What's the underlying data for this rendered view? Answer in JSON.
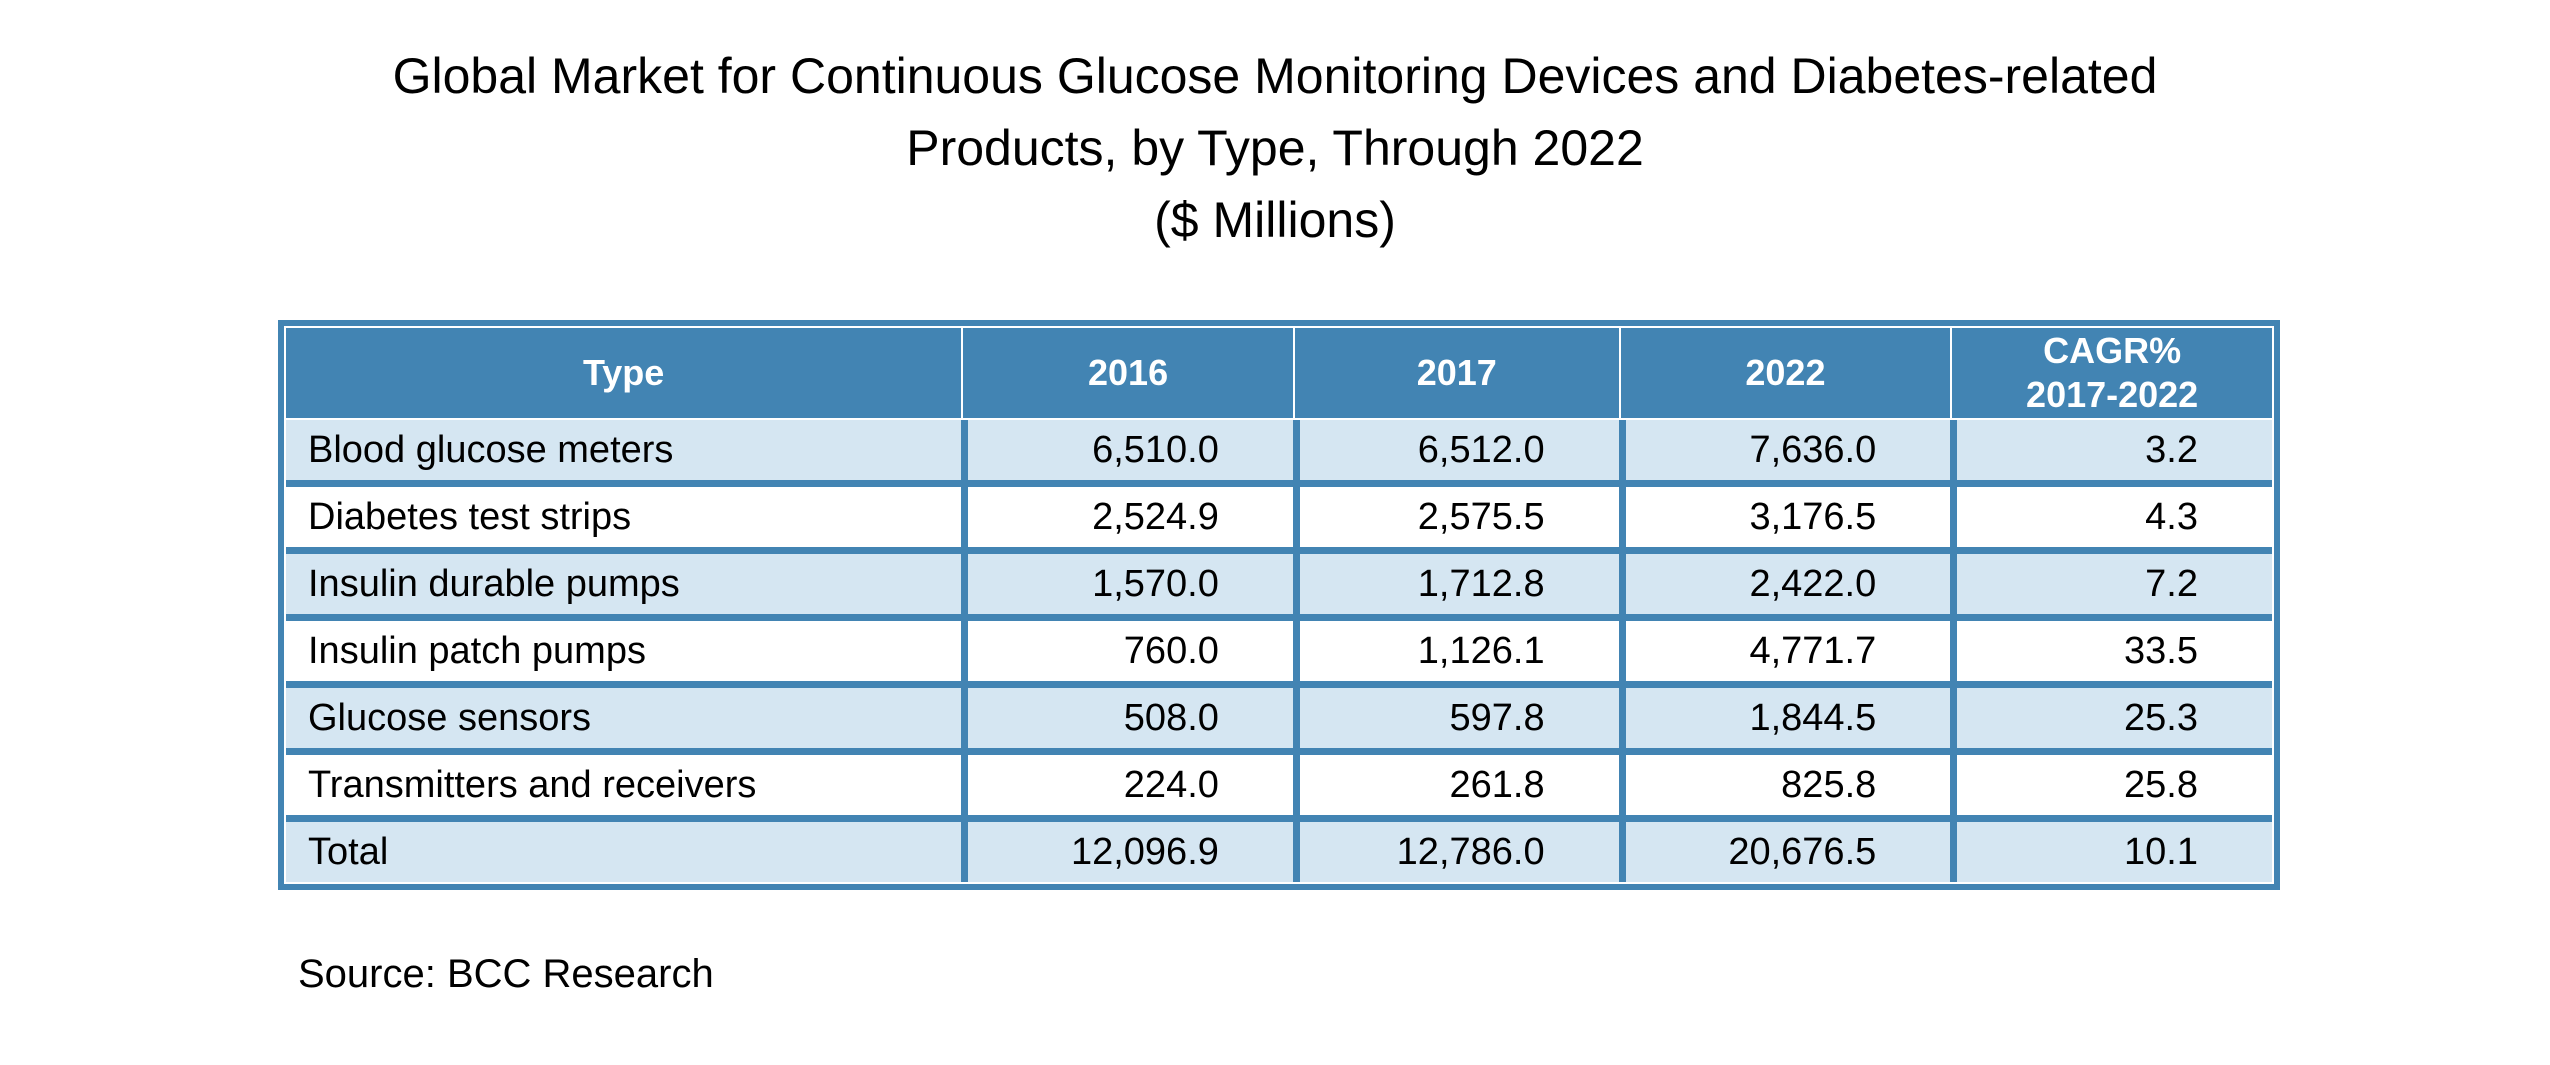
{
  "title": {
    "lines": [
      "Global Market for Continuous Glucose Monitoring Devices and Diabetes-related",
      "Products, by Type, Through 2022",
      "($ Millions)"
    ]
  },
  "table": {
    "columns": [
      "Type",
      "2016",
      "2017",
      "2022",
      "CAGR%\n2017-2022"
    ],
    "rows": [
      {
        "cells": [
          "Blood glucose meters",
          "6,510.0",
          "6,512.0",
          "7,636.0",
          "3.2"
        ]
      },
      {
        "cells": [
          "Diabetes test strips",
          "2,524.9",
          "2,575.5",
          "3,176.5",
          "4.3"
        ]
      },
      {
        "cells": [
          "Insulin durable pumps",
          "1,570.0",
          "1,712.8",
          "2,422.0",
          "7.2"
        ]
      },
      {
        "cells": [
          "Insulin patch pumps",
          "760.0",
          "1,126.1",
          "4,771.7",
          "33.5"
        ]
      },
      {
        "cells": [
          "Glucose sensors",
          "508.0",
          "597.8",
          "1,844.5",
          "25.3"
        ]
      },
      {
        "cells": [
          "Transmitters and receivers",
          "224.0",
          "261.8",
          "825.8",
          "25.8"
        ]
      },
      {
        "cells": [
          "Total",
          "12,096.9",
          "12,786.0",
          "20,676.5",
          "10.1"
        ]
      }
    ]
  },
  "source": "Source: BCC Research",
  "colors": {
    "header_blue": "#4284B3",
    "row_light_blue": "#D5E6F2",
    "row_white": "#FFFFFF",
    "header_text": "#FFFFFF",
    "body_text": "#000000"
  },
  "chart_data": {
    "type": "table",
    "title": "Global Market for Continuous Glucose Monitoring Devices and Diabetes-related Products, by Type, Through 2022 ($ Millions)",
    "units": "$ Millions",
    "columns": [
      "Type",
      "2016",
      "2017",
      "2022",
      "CAGR% 2017-2022"
    ],
    "rows": [
      {
        "type": "Blood glucose meters",
        "2016": 6510.0,
        "2017": 6512.0,
        "2022": 7636.0,
        "cagr_pct_2017_2022": 3.2
      },
      {
        "type": "Diabetes test strips",
        "2016": 2524.9,
        "2017": 2575.5,
        "2022": 3176.5,
        "cagr_pct_2017_2022": 4.3
      },
      {
        "type": "Insulin durable pumps",
        "2016": 1570.0,
        "2017": 1712.8,
        "2022": 2422.0,
        "cagr_pct_2017_2022": 7.2
      },
      {
        "type": "Insulin patch pumps",
        "2016": 760.0,
        "2017": 1126.1,
        "2022": 4771.7,
        "cagr_pct_2017_2022": 33.5
      },
      {
        "type": "Glucose sensors",
        "2016": 508.0,
        "2017": 597.8,
        "2022": 1844.5,
        "cagr_pct_2017_2022": 25.3
      },
      {
        "type": "Transmitters and receivers",
        "2016": 224.0,
        "2017": 261.8,
        "2022": 825.8,
        "cagr_pct_2017_2022": 25.8
      },
      {
        "type": "Total",
        "2016": 12096.9,
        "2017": 12786.0,
        "2022": 20676.5,
        "cagr_pct_2017_2022": 10.1
      }
    ],
    "source": "Source: BCC Research"
  }
}
